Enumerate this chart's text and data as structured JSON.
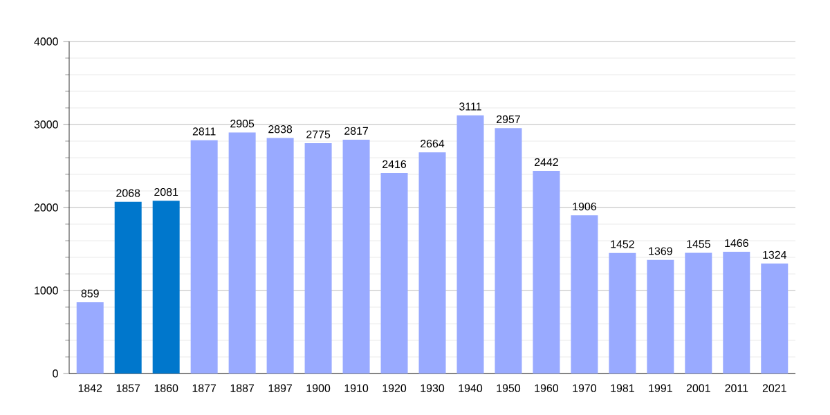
{
  "chart_data": {
    "type": "bar",
    "categories": [
      "1842",
      "1857",
      "1860",
      "1877",
      "1887",
      "1897",
      "1900",
      "1910",
      "1920",
      "1930",
      "1940",
      "1950",
      "1960",
      "1970",
      "1981",
      "1991",
      "2001",
      "2011",
      "2021"
    ],
    "values": [
      859,
      2068,
      2081,
      2811,
      2905,
      2838,
      2775,
      2817,
      2416,
      2664,
      3111,
      2957,
      2442,
      1906,
      1452,
      1369,
      1455,
      1466,
      1324
    ],
    "colors": [
      "#99aaff",
      "#0077cc",
      "#0077cc",
      "#99aaff",
      "#99aaff",
      "#99aaff",
      "#99aaff",
      "#99aaff",
      "#99aaff",
      "#99aaff",
      "#99aaff",
      "#99aaff",
      "#99aaff",
      "#99aaff",
      "#99aaff",
      "#99aaff",
      "#99aaff",
      "#99aaff",
      "#99aaff"
    ],
    "ylim": [
      0,
      4000
    ],
    "yticks": [
      0,
      1000,
      2000,
      3000,
      4000
    ],
    "grid": "y",
    "data_labels": true
  }
}
